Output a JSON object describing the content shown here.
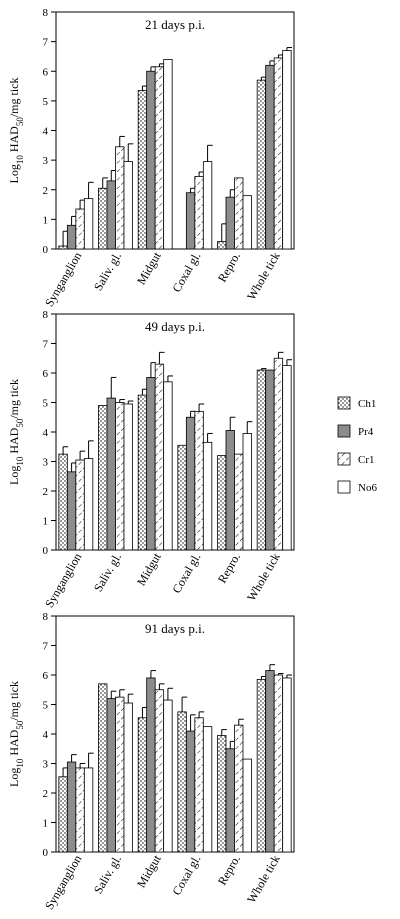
{
  "legend": [
    {
      "label": "Ch1",
      "pattern": "dots"
    },
    {
      "label": "Pr4",
      "pattern": "gray"
    },
    {
      "label": "Cr1",
      "pattern": "hatch"
    },
    {
      "label": "No6",
      "pattern": "white"
    }
  ],
  "colors": {
    "gray_fill": "#8c8c8c",
    "stroke": "#000000",
    "background": "#ffffff"
  },
  "chart_data": [
    {
      "type": "bar",
      "title": "21 days p.i.",
      "ylabel": "Log10 HAD50/mg tick",
      "ylim": [
        0,
        8
      ],
      "yticks": [
        "0",
        "1",
        "2",
        "3",
        "4",
        "5",
        "6",
        "7",
        "8"
      ],
      "categories": [
        "Synganglion",
        "Saliv. gl.",
        "Midgut",
        "Coxal gl.",
        "Repro.",
        "Whole tick"
      ],
      "series": [
        {
          "name": "Ch1",
          "values": [
            0.1,
            2.05,
            5.35,
            null,
            0.25,
            5.7
          ],
          "errors": [
            0.5,
            0.35,
            0.15,
            null,
            0.6,
            0.1
          ]
        },
        {
          "name": "Pr4",
          "values": [
            0.8,
            2.3,
            6.0,
            1.9,
            1.75,
            6.2
          ],
          "errors": [
            0.3,
            0.35,
            0.15,
            0.15,
            0.25,
            0.15
          ]
        },
        {
          "name": "Cr1",
          "values": [
            1.35,
            3.45,
            6.15,
            2.45,
            2.4,
            6.45
          ],
          "errors": [
            0.3,
            0.35,
            0.1,
            0.15,
            0.0,
            0.1
          ]
        },
        {
          "name": "No6",
          "values": [
            1.7,
            2.95,
            6.4,
            2.95,
            1.8,
            6.7
          ],
          "errors": [
            0.55,
            0.6,
            0.0,
            0.55,
            0.0,
            0.1
          ]
        }
      ]
    },
    {
      "type": "bar",
      "title": "49 days p.i.",
      "ylabel": "Log10 HAD50/mg tick",
      "ylim": [
        0,
        8
      ],
      "yticks": [
        "0",
        "1",
        "2",
        "3",
        "4",
        "5",
        "6",
        "7",
        "8"
      ],
      "categories": [
        "Synganglion",
        "Saliv. gl.",
        "Midgut",
        "Coxal gl.",
        "Repro.",
        "Whole tick"
      ],
      "series": [
        {
          "name": "Ch1",
          "values": [
            3.25,
            4.9,
            5.25,
            3.55,
            3.2,
            6.1
          ],
          "errors": [
            0.25,
            0.0,
            0.2,
            0.0,
            0.0,
            0.05
          ]
        },
        {
          "name": "Pr4",
          "values": [
            2.65,
            5.15,
            5.85,
            4.5,
            4.05,
            6.1
          ],
          "errors": [
            0.3,
            0.7,
            0.5,
            0.2,
            0.45,
            0.0
          ]
        },
        {
          "name": "Cr1",
          "values": [
            3.05,
            5.0,
            6.3,
            4.7,
            3.25,
            6.5
          ],
          "errors": [
            0.3,
            0.1,
            0.4,
            0.25,
            0.0,
            0.2
          ]
        },
        {
          "name": "No6",
          "values": [
            3.1,
            4.95,
            5.7,
            3.65,
            3.95,
            6.25
          ],
          "errors": [
            0.6,
            0.1,
            0.2,
            0.3,
            0.4,
            0.2
          ]
        }
      ]
    },
    {
      "type": "bar",
      "title": "91 days p.i.",
      "ylabel": "Log10 HAD50/mg tick",
      "ylim": [
        0,
        8
      ],
      "yticks": [
        "0",
        "1",
        "2",
        "3",
        "4",
        "5",
        "6",
        "7",
        "8"
      ],
      "categories": [
        "Synganglion",
        "Saliv. gl.",
        "Midgut",
        "Coxal gl.",
        "Repro.",
        "Whole tick"
      ],
      "series": [
        {
          "name": "Ch1",
          "values": [
            2.55,
            5.7,
            4.55,
            4.75,
            3.95,
            5.85
          ],
          "errors": [
            0.3,
            0.0,
            0.35,
            0.5,
            0.2,
            0.1
          ]
        },
        {
          "name": "Pr4",
          "values": [
            3.05,
            5.2,
            5.9,
            4.1,
            3.5,
            6.15
          ],
          "errors": [
            0.25,
            0.25,
            0.25,
            0.55,
            0.25,
            0.2
          ]
        },
        {
          "name": "Cr1",
          "values": [
            2.85,
            5.25,
            5.5,
            4.55,
            4.3,
            6.0
          ],
          "errors": [
            0.15,
            0.25,
            0.2,
            0.2,
            0.2,
            0.05
          ]
        },
        {
          "name": "No6",
          "values": [
            2.85,
            5.05,
            5.15,
            4.25,
            3.15,
            5.9
          ],
          "errors": [
            0.5,
            0.3,
            0.4,
            0.0,
            0.0,
            0.1
          ]
        }
      ]
    }
  ]
}
